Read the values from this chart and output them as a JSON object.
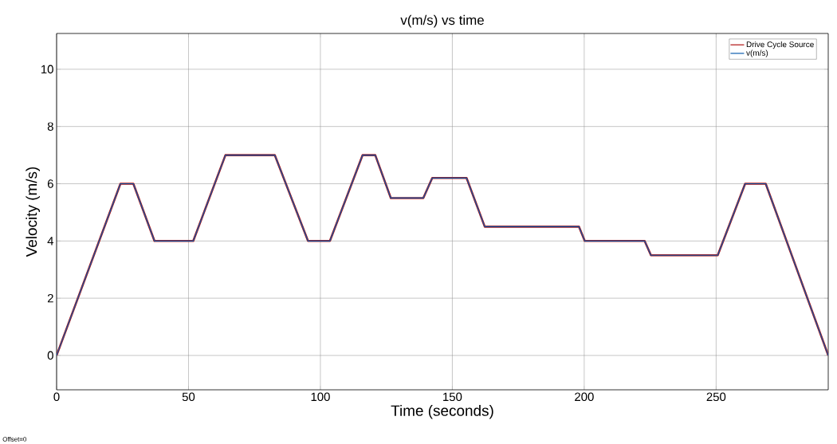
{
  "chart_data": {
    "type": "line",
    "title": "v(m/s) vs time",
    "xlabel": "Time (seconds)",
    "ylabel": "Velocity (m/s)",
    "x": [
      0,
      24.2,
      29.1,
      37.1,
      51.8,
      64,
      82.7,
      95.3,
      103.6,
      116,
      120.8,
      126.7,
      139,
      142.4,
      155.4,
      162.3,
      198,
      200.2,
      222.9,
      225.3,
      250.6,
      261,
      268.8,
      292.5
    ],
    "series": [
      {
        "name": "Drive Cycle Source",
        "color": "#b01010",
        "values": [
          0,
          6,
          6,
          4,
          4,
          7,
          7,
          4,
          4,
          7,
          7,
          5.5,
          5.5,
          6.2,
          6.2,
          4.5,
          4.5,
          4,
          4,
          3.5,
          3.5,
          6,
          6,
          0
        ]
      },
      {
        "name": "v(m/s)",
        "color": "#0b5cad",
        "values": [
          0,
          6,
          6,
          4,
          4,
          7,
          7,
          4,
          4,
          7,
          7,
          5.5,
          5.5,
          6.2,
          6.2,
          4.5,
          4.5,
          4,
          4,
          3.5,
          3.5,
          6,
          6,
          0
        ]
      }
    ],
    "xlim": [
      0,
      292.5
    ],
    "ylim": [
      -1.2,
      11.25
    ],
    "xticks": [
      0,
      50,
      100,
      150,
      200,
      250
    ],
    "yticks": [
      0,
      2,
      4,
      6,
      8,
      10
    ],
    "grid": true,
    "legend": "top right",
    "marker": "none",
    "line_style": "solid",
    "annotations": [
      "Offset=0"
    ]
  }
}
